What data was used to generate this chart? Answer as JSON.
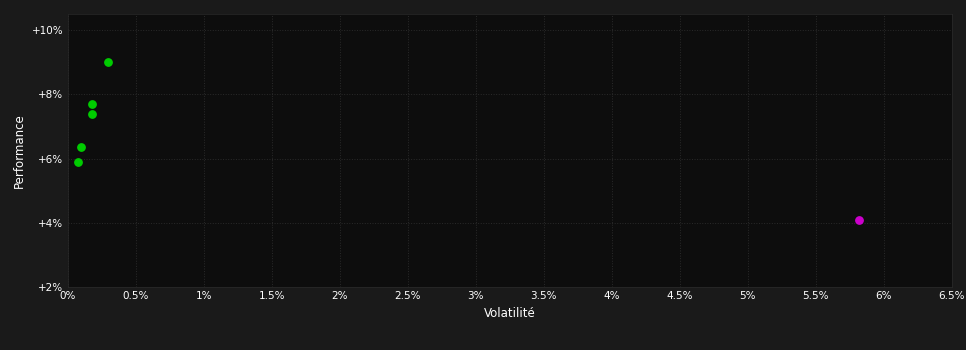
{
  "background_color": "#1a1a1a",
  "plot_bg_color": "#0d0d0d",
  "grid_color": "#2a2a2a",
  "text_color": "#ffffff",
  "xlabel": "Volatilité",
  "ylabel": "Performance",
  "xlim": [
    0,
    0.065
  ],
  "ylim": [
    0.02,
    0.105
  ],
  "x_ticks": [
    0.0,
    0.005,
    0.01,
    0.015,
    0.02,
    0.025,
    0.03,
    0.035,
    0.04,
    0.045,
    0.05,
    0.055,
    0.06,
    0.065
  ],
  "x_tick_labels": [
    "0%",
    "0.5%",
    "1%",
    "1.5%",
    "2%",
    "2.5%",
    "3%",
    "3.5%",
    "4%",
    "4.5%",
    "5%",
    "5.5%",
    "6%",
    "6.5%"
  ],
  "y_ticks": [
    0.02,
    0.04,
    0.06,
    0.08,
    0.1
  ],
  "y_tick_labels": [
    "+2%",
    "+4%",
    "+6%",
    "+8%",
    "+10%"
  ],
  "green_points": [
    [
      0.003,
      0.09
    ],
    [
      0.0018,
      0.077
    ],
    [
      0.0018,
      0.074
    ],
    [
      0.001,
      0.0635
    ],
    [
      0.0008,
      0.059
    ]
  ],
  "magenta_points": [
    [
      0.0582,
      0.041
    ]
  ],
  "green_color": "#00cc00",
  "magenta_color": "#cc00cc",
  "point_size": 28
}
